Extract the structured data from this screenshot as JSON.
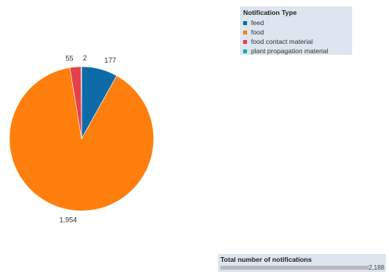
{
  "chart_data": {
    "type": "pie",
    "categories": [
      "feed",
      "food",
      "food contact material",
      "plant propagation material"
    ],
    "values": [
      177,
      1954,
      55,
      2
    ],
    "value_labels": [
      "177",
      "1,954",
      "55",
      "2"
    ],
    "legend_title": "Notification Type",
    "legend_position": "top-right",
    "colors": [
      "#0f6ba8",
      "#ff7f0e",
      "#e8404a",
      "#17b0b0"
    ]
  },
  "legend": {
    "title": "Notification Type",
    "items": [
      {
        "label": "feed",
        "color": "#0f6ba8"
      },
      {
        "label": "food",
        "color": "#ff7f0e"
      },
      {
        "label": "food contact material",
        "color": "#e8404a"
      },
      {
        "label": "plant propagation material",
        "color": "#17b0b0"
      }
    ]
  },
  "total": {
    "title": "Total number of notifications",
    "value": "2,188",
    "fraction": 1.0
  }
}
